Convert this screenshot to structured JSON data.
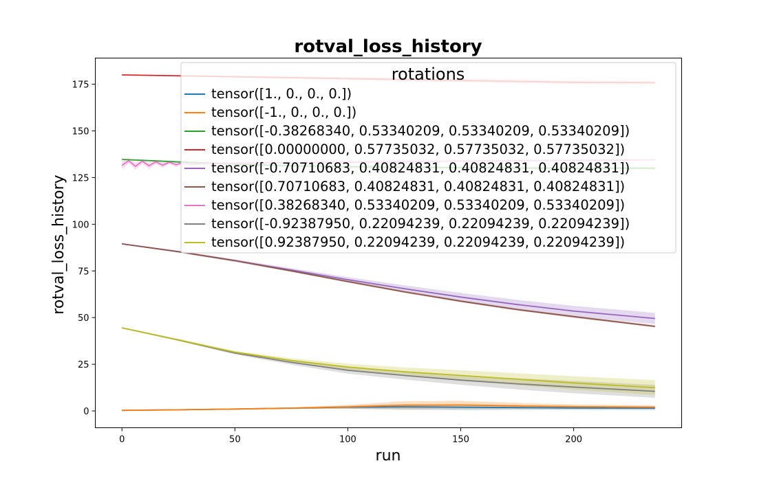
{
  "chart_data": {
    "type": "line",
    "title": "rotval_loss_history",
    "xlabel": "run",
    "ylabel": "rotval_loss_history",
    "xlim": [
      -11.8,
      247.8
    ],
    "ylim": [
      -9.0,
      189.0
    ],
    "xticks": [
      0,
      50,
      100,
      150,
      200
    ],
    "yticks": [
      0,
      25,
      50,
      75,
      100,
      125,
      150,
      175
    ],
    "grid": false,
    "legend": {
      "title": "rotations",
      "placement": "top-right"
    },
    "series": [
      {
        "name": "tensor([1., 0., 0., 0.])",
        "color": "#1f77b4",
        "x": [
          0,
          25,
          50,
          75,
          100,
          125,
          150,
          175,
          200,
          236
        ],
        "y": [
          0.3,
          0.6,
          1.0,
          1.5,
          2.0,
          2.2,
          2.0,
          1.8,
          1.6,
          1.5
        ],
        "band": [
          0.2,
          0.3,
          0.3,
          0.4,
          0.8,
          1.5,
          1.5,
          1.2,
          1.0,
          1.0
        ]
      },
      {
        "name": "tensor([-1.,  0.,  0.,  0.])",
        "color": "#ff7f0e",
        "x": [
          0,
          25,
          50,
          75,
          100,
          125,
          150,
          175,
          200,
          236
        ],
        "y": [
          0.3,
          0.6,
          1.0,
          1.5,
          2.2,
          3.0,
          3.2,
          2.7,
          2.3,
          2.0
        ],
        "band": [
          0.2,
          0.3,
          0.3,
          0.4,
          1.0,
          2.2,
          2.2,
          1.6,
          1.2,
          1.0
        ]
      },
      {
        "name": "tensor([-0.38268340,  0.53340209,  0.53340209,  0.53340209])",
        "color": "#2ca02c",
        "x": [
          0,
          25,
          50,
          75,
          100,
          125,
          150,
          175,
          200,
          236
        ],
        "y": [
          134.7,
          133.4,
          132.2,
          131.3,
          130.8,
          130.5,
          130.3,
          130.1,
          130.0,
          130.0
        ],
        "band": [
          0.3,
          0.4,
          0.5,
          0.5,
          0.6,
          0.6,
          0.6,
          0.6,
          0.6,
          0.6
        ]
      },
      {
        "name": "tensor([0.00000000, 0.57735032, 0.57735032, 0.57735032])",
        "color": "#d62728",
        "x": [
          0,
          25,
          50,
          75,
          100,
          125,
          150,
          175,
          200,
          236
        ],
        "y": [
          180.0,
          179.5,
          179.0,
          178.5,
          178.0,
          177.5,
          177.0,
          176.5,
          176.0,
          175.8
        ],
        "band": [
          0.1,
          0.3,
          0.5,
          0.7,
          0.8,
          0.9,
          1.0,
          1.0,
          1.0,
          1.0
        ]
      },
      {
        "name": "tensor([-0.70710683,  0.40824831,  0.40824831,  0.40824831])",
        "color": "#9467bd",
        "x": [
          0,
          25,
          50,
          75,
          100,
          125,
          150,
          175,
          200,
          236
        ],
        "y": [
          89.5,
          85.3,
          80.5,
          75.5,
          70.3,
          65.5,
          61.0,
          57.0,
          53.5,
          49.5
        ],
        "band": [
          0.3,
          0.5,
          0.7,
          1.0,
          1.4,
          1.8,
          2.2,
          2.5,
          2.8,
          3.0
        ]
      },
      {
        "name": "tensor([0.70710683, 0.40824831, 0.40824831, 0.40824831])",
        "color": "#8c564b",
        "x": [
          0,
          25,
          50,
          75,
          100,
          125,
          150,
          175,
          200,
          236
        ],
        "y": [
          89.5,
          85.3,
          80.5,
          75.0,
          69.3,
          63.8,
          58.8,
          54.3,
          50.5,
          45.3
        ],
        "band": [
          0.2,
          0.3,
          0.4,
          0.5,
          0.6,
          0.6,
          0.6,
          0.6,
          0.6,
          0.6
        ]
      },
      {
        "name": "tensor([0.38268340, 0.53340209, 0.53340209, 0.53340209])",
        "color": "#e377c2",
        "x": [
          0,
          3,
          6,
          9,
          12,
          15,
          18,
          21,
          24,
          27,
          30,
          40,
          60,
          80,
          100,
          125,
          150,
          175,
          200,
          236
        ],
        "y": [
          131.5,
          134.0,
          131.0,
          133.8,
          131.3,
          133.5,
          131.6,
          133.2,
          131.9,
          133.0,
          132.2,
          132.6,
          132.8,
          133.0,
          133.2,
          133.5,
          133.8,
          134.0,
          134.2,
          134.5
        ],
        "band": [
          2.0,
          1.5,
          1.8,
          1.4,
          1.6,
          1.2,
          1.4,
          1.0,
          1.2,
          0.8,
          0.8,
          0.6,
          0.5,
          0.5,
          0.5,
          0.5,
          0.5,
          0.5,
          0.5,
          0.5
        ]
      },
      {
        "name": "tensor([-0.92387950,  0.22094239,  0.22094239,  0.22094239])",
        "color": "#7f7f7f",
        "x": [
          0,
          25,
          50,
          75,
          100,
          125,
          150,
          175,
          200,
          236
        ],
        "y": [
          44.5,
          38.0,
          31.0,
          26.0,
          21.8,
          19.0,
          16.5,
          14.5,
          12.8,
          10.5
        ],
        "band": [
          0.3,
          0.5,
          0.7,
          1.2,
          1.8,
          2.2,
          2.5,
          3.0,
          3.3,
          3.5
        ]
      },
      {
        "name": "tensor([0.92387950, 0.22094239, 0.22094239, 0.22094239])",
        "color": "#bcbd22",
        "x": [
          0,
          25,
          50,
          75,
          100,
          125,
          150,
          175,
          200,
          236
        ],
        "y": [
          44.5,
          38.0,
          31.5,
          27.0,
          23.5,
          21.0,
          19.0,
          17.0,
          15.0,
          12.5
        ],
        "band": [
          0.3,
          0.5,
          0.7,
          1.2,
          1.8,
          2.3,
          2.8,
          3.2,
          3.6,
          4.0
        ]
      }
    ]
  }
}
